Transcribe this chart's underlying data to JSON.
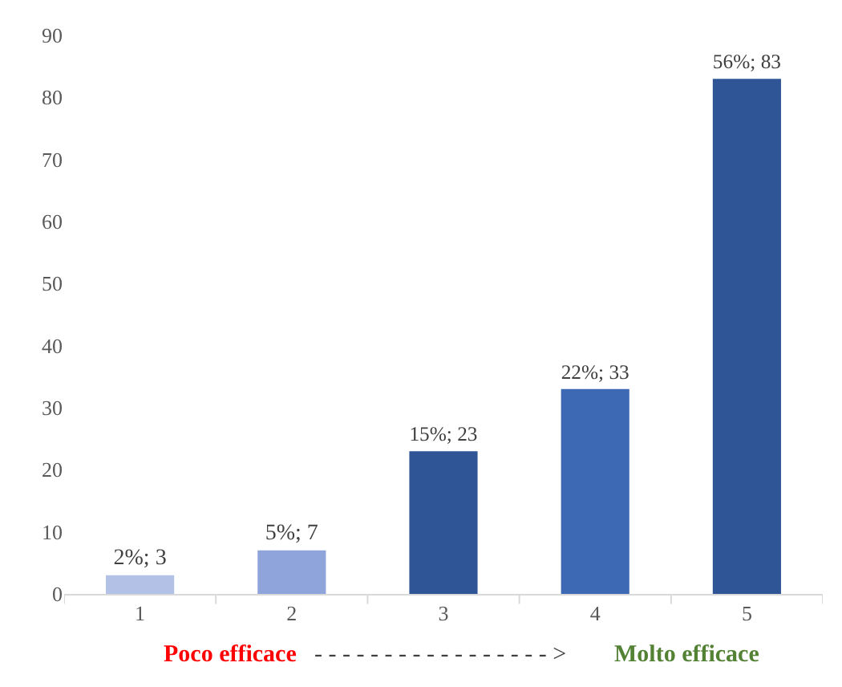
{
  "chart_data": {
    "type": "bar",
    "categories": [
      "1",
      "2",
      "3",
      "4",
      "5"
    ],
    "values": [
      3,
      7,
      23,
      33,
      83
    ],
    "colors": [
      "#b4c1e6",
      "#8fa4da",
      "#2f5597",
      "#3d68b3",
      "#2f5597"
    ],
    "value_labels": [
      "2%; 3",
      "5%; 7",
      "15%; 23",
      "22%; 33",
      "56%; 83"
    ],
    "ylim": [
      0,
      90
    ],
    "yticks": [
      0,
      10,
      20,
      30,
      40,
      50,
      60,
      70,
      80,
      90
    ],
    "legend": false,
    "annotations": [
      "Poco efficace",
      "- - - - - - - - - - - - - - - - - >",
      "Molto efficace"
    ]
  }
}
